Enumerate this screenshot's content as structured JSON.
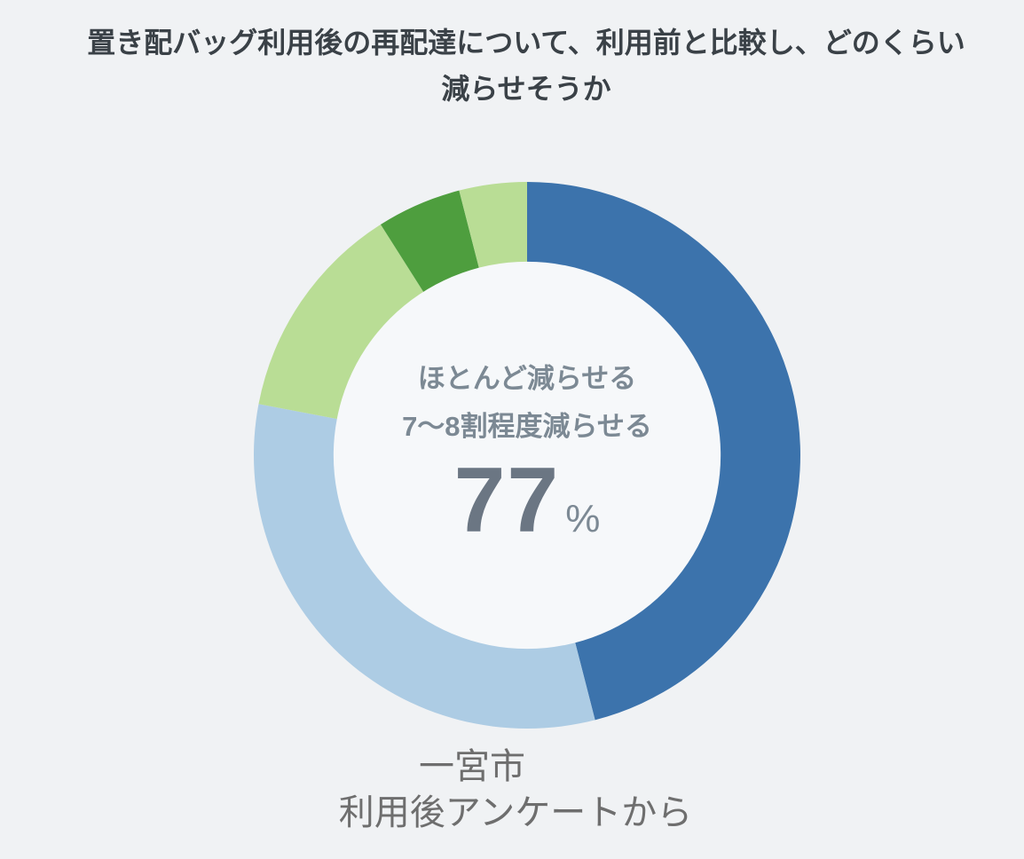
{
  "page": {
    "background_color": "#f0f2f4"
  },
  "title": "置き配バッグ利用後の再配達について、利用前と比較し、どのくらい減らせそうか",
  "caption": {
    "line1": "一宮市",
    "line2": "利用後アンケートから"
  },
  "chart_data": {
    "type": "pie",
    "subtype": "donut",
    "title": "置き配バッグ利用後の再配達について、利用前と比較し、どのくらい減らせそうか",
    "start_angle_deg": 0,
    "direction": "clockwise",
    "inner_radius_ratio": 0.705,
    "hole_color": "#f6f8fa",
    "legend": "none",
    "center_text": {
      "lines": [
        "ほとんど減らせる",
        "7〜8割程度減らせる"
      ],
      "value": "77",
      "unit": "%",
      "value_color": "#6b7683",
      "label_color": "#7c8994"
    },
    "segments": [
      {
        "label": "ほとんど減らせる",
        "value": 46,
        "color": "#3c73ac"
      },
      {
        "label": "7〜8割程度減らせる",
        "value": 32,
        "color": "#adcce4"
      },
      {
        "label": "",
        "value": 13,
        "color": "#b9dd95"
      },
      {
        "label": "",
        "value": 5,
        "color": "#4e9e3e"
      },
      {
        "label": "",
        "value": 4,
        "color": "#b9dd95"
      }
    ],
    "source_note": "一宮市 利用後アンケートから"
  }
}
